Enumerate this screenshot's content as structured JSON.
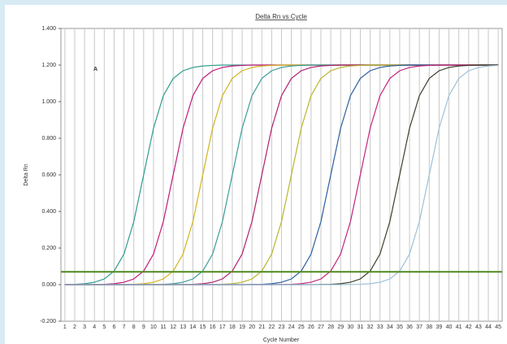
{
  "chart_data": {
    "type": "line",
    "title": "Delta Rn vs Cycle",
    "xlabel": "Cycle Number",
    "ylabel": "Delta Rn",
    "annotation": "A",
    "x": [
      1,
      2,
      3,
      4,
      5,
      6,
      7,
      8,
      9,
      10,
      11,
      12,
      13,
      14,
      15,
      16,
      17,
      18,
      19,
      20,
      21,
      22,
      23,
      24,
      25,
      26,
      27,
      28,
      29,
      30,
      31,
      32,
      33,
      34,
      35,
      36,
      37,
      38,
      39,
      40,
      41,
      42,
      43,
      44,
      45
    ],
    "xlim": [
      0.6,
      45.4
    ],
    "xticks": [
      1,
      2,
      3,
      4,
      5,
      6,
      7,
      8,
      9,
      10,
      11,
      12,
      13,
      14,
      15,
      16,
      17,
      18,
      19,
      20,
      21,
      22,
      23,
      24,
      25,
      26,
      27,
      28,
      29,
      30,
      31,
      32,
      33,
      34,
      35,
      36,
      37,
      38,
      39,
      40,
      41,
      42,
      43,
      44,
      45
    ],
    "ylim": [
      -0.2,
      1.4
    ],
    "yticks": [
      {
        "value": -0.2,
        "label": "-0.200"
      },
      {
        "value": 0,
        "label": "0.000"
      },
      {
        "value": 0.2,
        "label": "0.200"
      },
      {
        "value": 0.4,
        "label": "0.400"
      },
      {
        "value": 0.6,
        "label": "0.600"
      },
      {
        "value": 0.8,
        "label": "0.800"
      },
      {
        "value": 1,
        "label": "1.000"
      },
      {
        "value": 1.2,
        "label": "1.200"
      },
      {
        "value": 1.4,
        "label": "1.400"
      }
    ],
    "grid": true,
    "threshold": 0.07,
    "threshold_color": "#4f8a1e",
    "series": [
      {
        "color": "#2e9c8c",
        "values": [
          0.001,
          0.002,
          0.005,
          0.013,
          0.031,
          0.074,
          0.167,
          0.345,
          0.6,
          0.855,
          1.033,
          1.127,
          1.169,
          1.187,
          1.195,
          1.198,
          1.2,
          1.2,
          1.2,
          1.2,
          1.2,
          1.2,
          1.2,
          1.2,
          1.2,
          1.2,
          1.2,
          1.2,
          1.2,
          1.2,
          1.2,
          1.2,
          1.2,
          1.2,
          1.2,
          1.2,
          1.2,
          1.2,
          1.2,
          1.2,
          1.2,
          1.2,
          1.2,
          1.2,
          1.2
        ]
      },
      {
        "color": "#c2187a",
        "values": [
          0,
          0,
          0,
          0.001,
          0.002,
          0.005,
          0.013,
          0.031,
          0.074,
          0.167,
          0.345,
          0.6,
          0.855,
          1.033,
          1.127,
          1.169,
          1.187,
          1.195,
          1.198,
          1.2,
          1.2,
          1.2,
          1.2,
          1.2,
          1.2,
          1.2,
          1.2,
          1.2,
          1.2,
          1.2,
          1.2,
          1.2,
          1.2,
          1.2,
          1.2,
          1.2,
          1.2,
          1.2,
          1.2,
          1.2,
          1.2,
          1.2,
          1.2,
          1.2,
          1.2
        ]
      },
      {
        "color": "#d4b21a",
        "values": [
          0,
          0,
          0,
          0,
          0,
          0,
          0.001,
          0.002,
          0.005,
          0.013,
          0.031,
          0.074,
          0.167,
          0.345,
          0.6,
          0.855,
          1.033,
          1.127,
          1.169,
          1.187,
          1.195,
          1.198,
          1.2,
          1.2,
          1.2,
          1.2,
          1.2,
          1.2,
          1.2,
          1.2,
          1.2,
          1.2,
          1.2,
          1.2,
          1.2,
          1.2,
          1.2,
          1.2,
          1.2,
          1.2,
          1.2,
          1.2,
          1.2,
          1.2,
          1.2
        ]
      },
      {
        "color": "#3a9c9a",
        "values": [
          0,
          0,
          0,
          0,
          0,
          0,
          0,
          0,
          0,
          0.001,
          0.002,
          0.005,
          0.013,
          0.031,
          0.074,
          0.167,
          0.345,
          0.6,
          0.855,
          1.033,
          1.127,
          1.169,
          1.187,
          1.195,
          1.198,
          1.2,
          1.2,
          1.2,
          1.2,
          1.2,
          1.2,
          1.2,
          1.2,
          1.2,
          1.2,
          1.2,
          1.2,
          1.2,
          1.2,
          1.2,
          1.2,
          1.2,
          1.2,
          1.2,
          1.2
        ]
      },
      {
        "color": "#b01f6f",
        "values": [
          0,
          0,
          0,
          0,
          0,
          0,
          0,
          0,
          0,
          0,
          0,
          0,
          0.001,
          0.002,
          0.005,
          0.013,
          0.031,
          0.074,
          0.167,
          0.345,
          0.6,
          0.855,
          1.033,
          1.127,
          1.169,
          1.187,
          1.195,
          1.198,
          1.2,
          1.2,
          1.2,
          1.2,
          1.2,
          1.2,
          1.2,
          1.2,
          1.2,
          1.2,
          1.2,
          1.2,
          1.2,
          1.2,
          1.2,
          1.2,
          1.2
        ]
      },
      {
        "color": "#b8b52a",
        "values": [
          0,
          0,
          0,
          0,
          0,
          0,
          0,
          0,
          0,
          0,
          0,
          0,
          0,
          0,
          0,
          0.001,
          0.002,
          0.005,
          0.013,
          0.031,
          0.074,
          0.167,
          0.345,
          0.6,
          0.855,
          1.033,
          1.127,
          1.169,
          1.187,
          1.195,
          1.198,
          1.2,
          1.2,
          1.2,
          1.2,
          1.2,
          1.2,
          1.2,
          1.2,
          1.2,
          1.2,
          1.2,
          1.2,
          1.2,
          1.2
        ]
      },
      {
        "color": "#2a5fa0",
        "values": [
          0,
          0,
          0,
          0,
          0,
          0,
          0,
          0,
          0,
          0,
          0,
          0,
          0,
          0,
          0,
          0,
          0,
          0,
          0,
          0.001,
          0.002,
          0.005,
          0.013,
          0.031,
          0.074,
          0.167,
          0.345,
          0.6,
          0.855,
          1.033,
          1.127,
          1.169,
          1.187,
          1.195,
          1.198,
          1.2,
          1.2,
          1.2,
          1.2,
          1.2,
          1.2,
          1.2,
          1.2,
          1.2,
          1.2
        ]
      },
      {
        "color": "#c4237f",
        "values": [
          0,
          0,
          0,
          0,
          0,
          0,
          0,
          0,
          0,
          0,
          0,
          0,
          0,
          0,
          0,
          0,
          0,
          0,
          0,
          0,
          0,
          0,
          0.001,
          0.002,
          0.005,
          0.013,
          0.031,
          0.074,
          0.167,
          0.345,
          0.6,
          0.855,
          1.033,
          1.127,
          1.169,
          1.187,
          1.195,
          1.198,
          1.2,
          1.2,
          1.2,
          1.2,
          1.2,
          1.2,
          1.2
        ]
      },
      {
        "color": "#3b3f2a",
        "values": [
          0,
          0,
          0,
          0,
          0,
          0,
          0,
          0,
          0,
          0,
          0,
          0,
          0,
          0,
          0,
          0,
          0,
          0,
          0,
          0,
          0,
          0,
          0,
          0,
          0,
          0,
          0.001,
          0.002,
          0.005,
          0.013,
          0.031,
          0.074,
          0.167,
          0.345,
          0.6,
          0.855,
          1.033,
          1.127,
          1.169,
          1.187,
          1.195,
          1.198,
          1.2,
          1.2,
          1.2
        ]
      },
      {
        "color": "#9cc0d8",
        "values": [
          0,
          0,
          0,
          0,
          0,
          0,
          0,
          0,
          0,
          0,
          0,
          0,
          0,
          0,
          0,
          0,
          0,
          0,
          0,
          0,
          0,
          0,
          0,
          0,
          0,
          0,
          0,
          0,
          0,
          0.001,
          0.002,
          0.005,
          0.013,
          0.031,
          0.074,
          0.167,
          0.345,
          0.6,
          0.855,
          1.033,
          1.127,
          1.169,
          1.187,
          1.195,
          1.198
        ]
      }
    ]
  }
}
